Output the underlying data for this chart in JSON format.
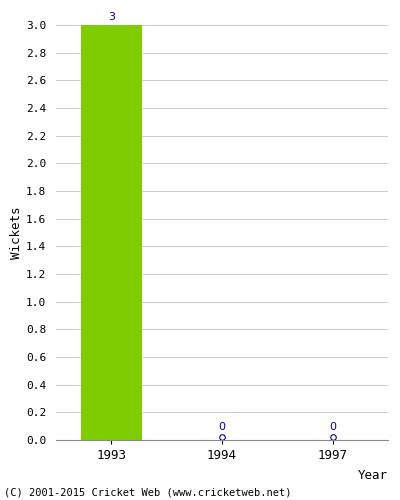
{
  "years": [
    "1993",
    "1994",
    "1997"
  ],
  "values": [
    3,
    0,
    0
  ],
  "bar_color": "#7FCC00",
  "label_color": "#0000AA",
  "ylabel": "Wickets",
  "xlabel": "Year",
  "ylim": [
    0,
    3.0
  ],
  "yticks": [
    0.0,
    0.2,
    0.4,
    0.6,
    0.8,
    1.0,
    1.2,
    1.4,
    1.6,
    1.8,
    2.0,
    2.2,
    2.4,
    2.6,
    2.8,
    3.0
  ],
  "footer": "(C) 2001-2015 Cricket Web (www.cricketweb.net)",
  "grid_color": "#cccccc",
  "bar_width": 0.55,
  "zero_marker_size": 4
}
